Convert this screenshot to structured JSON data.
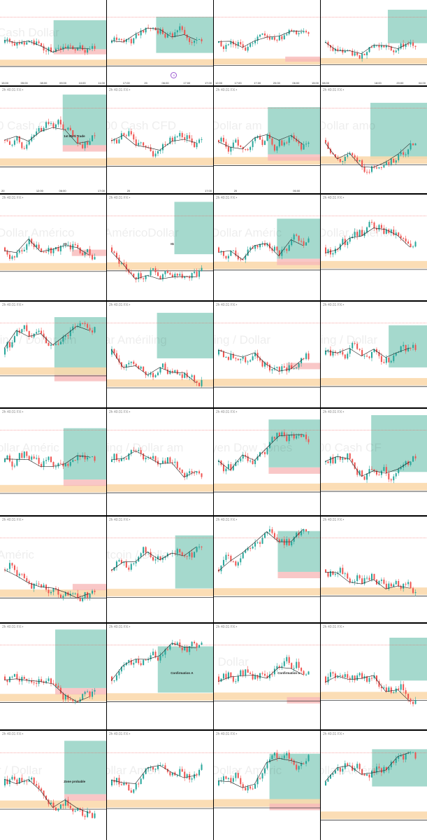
{
  "title": "",
  "colors": {
    "bull": "#26a69a",
    "bear": "#ef5350",
    "zone_green": "#8fd0c0",
    "zone_orange": "#fbd9ad",
    "zone_pink": "#f7b9b9",
    "accent_orange": "#f29a1f",
    "page_badge": "#9b59d0"
  },
  "cells": [
    {
      "header": "",
      "watermark": "Cash   Dollar",
      "annotation": "",
      "page": "",
      "ticks": [
        "15:00",
        "05:00",
        "08:00",
        "09:00",
        "10:00",
        "11:00"
      ]
    },
    {
      "header": "",
      "watermark": "",
      "annotation": "",
      "page": "8",
      "ticks": [
        "",
        "17:00",
        "20",
        "06:00",
        "17:00",
        "17:00"
      ]
    },
    {
      "header": "",
      "watermark": "",
      "annotation": "",
      "page": "",
      "ticks": [
        "12:00",
        "17:00",
        "17:00",
        "20:00",
        "06:00",
        "15:00"
      ]
    },
    {
      "header": "",
      "watermark": "",
      "annotation": "",
      "page": "",
      "ticks": [
        "08:00",
        "",
        "",
        "18:00",
        "20:00",
        "04:00"
      ]
    },
    {
      "header": "2h 40:31 FX:•",
      "watermark": "0 Cash CFD",
      "annotation": "1st BUY Trade",
      "page": "",
      "ticks": [
        "20",
        "",
        "12:00",
        "06:00",
        "",
        "17:00"
      ]
    },
    {
      "header": "2h 40:31 FX:•",
      "watermark": "00 Cash CFD",
      "annotation": "",
      "page": "",
      "ticks": [
        "",
        "20",
        "",
        "",
        "",
        "17:00"
      ]
    },
    {
      "header": "2h 40:31 FX:•",
      "watermark": "Dollar am",
      "annotation": "",
      "page": "",
      "ticks": [
        "",
        "20",
        "",
        "",
        "06:00",
        ""
      ]
    },
    {
      "header": "2h 40:31 FX:•",
      "watermark": "Dollar amo",
      "annotation": "",
      "page": "",
      "ticks": [
        "",
        "",
        "",
        "",
        "",
        ""
      ]
    },
    {
      "header": "2h 40:31 FX:•",
      "watermark": "Dollar Américo",
      "annotation": "IG",
      "page": "",
      "ticks": [
        "",
        "",
        "",
        "",
        "",
        ""
      ]
    },
    {
      "header": "2h 40:31 FX:•",
      "watermark": "AméricoDollar",
      "annotation": "IG",
      "page": "",
      "ticks": [
        "",
        "",
        "",
        "",
        "",
        ""
      ]
    },
    {
      "header": "2h 40:31 FX:•",
      "watermark": "Dollar Améric",
      "annotation": "",
      "page": "",
      "ticks": [
        "",
        "",
        "",
        "",
        "",
        ""
      ]
    },
    {
      "header": "2h 40:31 FX:•",
      "watermark": "Dollar Améric",
      "annotation": "",
      "page": "",
      "ticks": [
        "",
        "",
        "",
        "",
        "",
        ""
      ]
    },
    {
      "header": "2h 40:31 FX:•",
      "watermark": "ling / Dollar am",
      "annotation": "",
      "page": "",
      "ticks": [
        "",
        "",
        "",
        "",
        "",
        ""
      ]
    },
    {
      "header": "2h 40:31 FX:•",
      "watermark": "ar Amériling",
      "annotation": "",
      "page": "",
      "ticks": [
        "",
        "",
        "",
        "",
        "",
        ""
      ]
    },
    {
      "header": "2h 40:31 FX:•",
      "watermark": "ling / Dollar",
      "annotation": "",
      "page": "",
      "ticks": [
        "",
        "",
        "",
        "",
        "",
        ""
      ]
    },
    {
      "header": "2h 40:31 FX:•",
      "watermark": "ling / Dollar",
      "annotation": "",
      "page": "",
      "ticks": [
        "",
        "",
        "",
        "",
        "",
        ""
      ]
    },
    {
      "header": "2h 40:31 FX:•",
      "watermark": "ollar Améric",
      "annotation": "",
      "page": "",
      "ticks": [
        "",
        "",
        "",
        "",
        "",
        ""
      ]
    },
    {
      "header": "2h 40:31 FX:•",
      "watermark": "ling / Dollar am",
      "annotation": "",
      "page": "",
      "ticks": [
        "",
        "",
        "",
        "",
        "",
        ""
      ]
    },
    {
      "header": "2h 40:31 FX:•",
      "watermark": "yen Dow Jones",
      "annotation": "",
      "page": "",
      "ticks": [
        "",
        "",
        "",
        "",
        "",
        ""
      ]
    },
    {
      "header": "2h 40:31 FX:•",
      "watermark": "00 Cash CF",
      "annotation": "",
      "page": "",
      "ticks": [
        "",
        "",
        "",
        "",
        "",
        ""
      ]
    },
    {
      "header": "2h 40:31 FX:•",
      "watermark": "Améric",
      "annotation": "",
      "page": "",
      "ticks": [
        "",
        "",
        "",
        "",
        "",
        ""
      ]
    },
    {
      "header": "2h 40:31 FX:•",
      "watermark": "itcoin / Dolla",
      "annotation": "",
      "page": "",
      "ticks": [
        "",
        "",
        "",
        "",
        "",
        ""
      ]
    },
    {
      "header": "2h 40:31 FX:•",
      "watermark": "",
      "annotation": "",
      "page": "",
      "ticks": [
        "",
        "",
        "",
        "",
        "",
        ""
      ]
    },
    {
      "header": "2h 40:31 FX:•",
      "watermark": "",
      "annotation": "",
      "page": "",
      "ticks": [
        "",
        "",
        "",
        "",
        "",
        ""
      ]
    },
    {
      "header": "2h 40:31 FX:•",
      "watermark": "",
      "annotation": "",
      "page": "",
      "ticks": [
        "",
        "",
        "",
        "",
        "",
        ""
      ]
    },
    {
      "header": "2h 40:31 FX:•",
      "watermark": "",
      "annotation": "Confirmation A",
      "page": "",
      "ticks": [
        "",
        "",
        "",
        "",
        "",
        ""
      ]
    },
    {
      "header": "2h 40:31 FX:•",
      "watermark": "/ Dollar",
      "annotation": "Confirmation a",
      "page": "",
      "ticks": [
        "",
        "",
        "",
        "",
        "",
        ""
      ]
    },
    {
      "header": "2h 40:31 FX:•",
      "watermark": "",
      "annotation": "",
      "page": "",
      "ticks": [
        "",
        "",
        "",
        "",
        "",
        ""
      ]
    },
    {
      "header": "2h 40:31 FX:•",
      "watermark": "r / Dollar",
      "annotation": "Zone probable",
      "page": "",
      "ticks": [
        "",
        "",
        "",
        "",
        "",
        ""
      ]
    },
    {
      "header": "2h 40:31 FX:•",
      "watermark": "ollar Améri",
      "annotation": "",
      "page": "",
      "ticks": [
        "",
        "",
        "",
        "",
        "",
        ""
      ]
    },
    {
      "header": "2h 40:31 FX:•",
      "watermark": "Dollar Améric",
      "annotation": "",
      "page": "",
      "ticks": [
        "",
        "",
        "",
        "",
        "",
        ""
      ]
    },
    {
      "header": "2h 40:31 FX:•",
      "watermark": "ollar Améric",
      "annotation": "",
      "page": "",
      "ticks": [
        "",
        "",
        "",
        "",
        "",
        ""
      ]
    }
  ],
  "chart_data": {
    "type": "candlestick-grid",
    "rows": 8,
    "cols": 4,
    "panels": 32
  }
}
